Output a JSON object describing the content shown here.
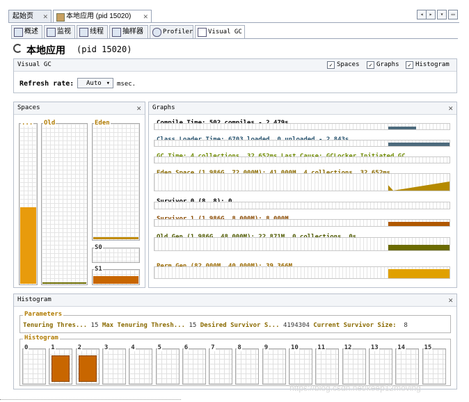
{
  "doc_tabs": [
    {
      "label": "起始页",
      "active": false
    },
    {
      "label": "本地应用 (pid 15020)",
      "active": true
    }
  ],
  "sub_tabs": [
    {
      "label": "概述",
      "icon": "overview-icon"
    },
    {
      "label": "监视",
      "icon": "monitor-icon"
    },
    {
      "label": "线程",
      "icon": "threads-icon"
    },
    {
      "label": "抽样器",
      "icon": "sampler-icon"
    },
    {
      "label": "Profiler",
      "icon": "profiler-icon"
    },
    {
      "label": "Visual GC",
      "icon": "visualgc-icon",
      "active": true
    }
  ],
  "app_title": "本地应用",
  "app_pid": "(pid 15020)",
  "visualgc": {
    "header": "Visual GC",
    "options": [
      {
        "label": "Spaces",
        "checked": true
      },
      {
        "label": "Graphs",
        "checked": true
      },
      {
        "label": "Histogram",
        "checked": true
      }
    ],
    "refresh_label": "Refresh rate:",
    "refresh_value": "Auto",
    "refresh_unit": "msec."
  },
  "spaces": {
    "title": "Spaces",
    "perm_label": "...",
    "old_label": "Old",
    "eden_label": "Eden",
    "s0_label": "S0",
    "s1_label": "S1",
    "perm_fill": 0.48,
    "old_fill": 0.01,
    "eden_fill": 0.02,
    "s0_fill": 0.0,
    "s1_fill": 1.0
  },
  "graphs": {
    "title": "Graphs",
    "rows": [
      {
        "label": "Compile Time: 502 compiles - 2.479s",
        "color": "#000000",
        "series": "#4d6b7d"
      },
      {
        "label": "Class Loader Time: 6703 loaded, 0 unloaded - 2.843s",
        "color": "#2a5570",
        "series": "#4d6b7d"
      },
      {
        "label": "GC Time: 4 collections, 32.652ms Last Cause: GCLocker Initiated GC",
        "color": "#6e8a00",
        "series": "#6e8a00"
      },
      {
        "label": "Eden Space (1.986G, 72.000M): 41.000M, 4 collections, 32.652ms",
        "color": "#8a6a00",
        "series": "#b58a00"
      },
      {
        "label": "Survivor 0 (8, 8): 0",
        "color": "#000000",
        "series": "#b06000"
      },
      {
        "label": "Survivor 1 (1.986G, 8.000M): 8.000M",
        "color": "#8a4a00",
        "series": "#b05800"
      },
      {
        "label": "Old Gen (1.986G, 48.000M): 22.871M, 0 collections, 0s",
        "color": "#4f5a00",
        "series": "#6b6b00"
      },
      {
        "label": "Perm Gen (82.000M, 40.000M): 39.366M",
        "color": "#9a6a00",
        "series": "#e0a000"
      }
    ]
  },
  "histogram": {
    "title": "Histogram",
    "parameters_label": "Parameters",
    "params": [
      {
        "label": "Tenuring Thres...",
        "value": "15"
      },
      {
        "label": "Max Tenuring Thresh...",
        "value": "15"
      },
      {
        "label": "Desired Survivor S...",
        "value": "4194304"
      },
      {
        "label": "Current Survivor Size:",
        "value": "8"
      }
    ],
    "histogram_label": "Histogram",
    "bins": [
      "0",
      "1",
      "2",
      "3",
      "4",
      "5",
      "6",
      "7",
      "8",
      "9",
      "10",
      "11",
      "12",
      "13",
      "14",
      "15"
    ],
    "filled_bins": [
      "1",
      "2"
    ]
  },
  "watermark": "https://blog.csdn.net/keep12moving"
}
